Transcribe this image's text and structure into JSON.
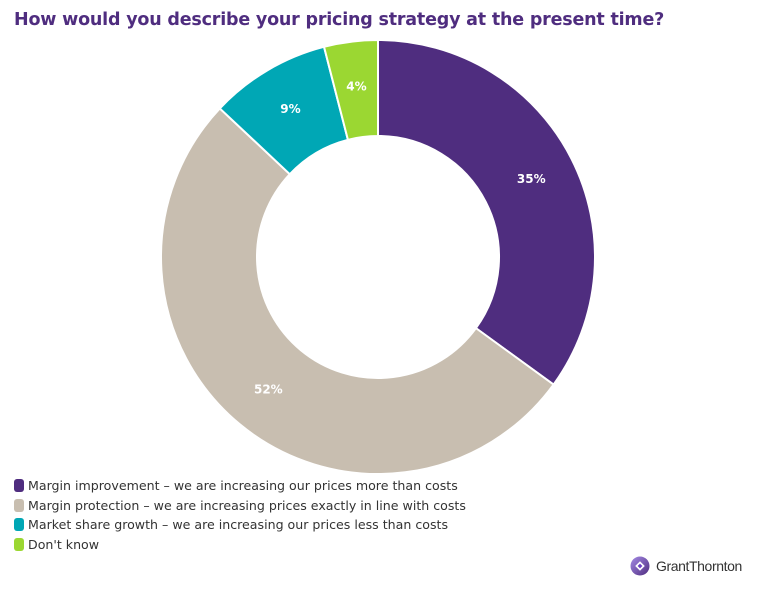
{
  "chart_data": {
    "type": "pie",
    "variant": "donut",
    "title": "How would you describe your pricing strategy at the present time?",
    "start_angle_note": "clockwise from 12 o'clock",
    "slices": [
      {
        "name": "Margin improvement - we are increasing our prices more than costs",
        "value": 35,
        "label": "35%",
        "color": "#4f2d7f"
      },
      {
        "name": "Margin protection - we are increasing prices exactly in line with costs",
        "value": 52,
        "label": "52%",
        "color": "#c8beb0"
      },
      {
        "name": "Market share growth - we are increasing our prices less than costs",
        "value": 9,
        "label": "9%",
        "color": "#00a7b5"
      },
      {
        "name": "Don't know",
        "value": 4,
        "label": "4%",
        "color": "#9bd732"
      }
    ],
    "legend_position": "bottom-left",
    "units": "%"
  },
  "title": "How would you describe your pricing strategy at the present time?",
  "legend": [
    {
      "label": "Margin improvement – we are increasing our prices more than costs",
      "color": "#4f2d7f"
    },
    {
      "label": "Margin protection – we are increasing prices exactly in line with costs",
      "color": "#c8beb0"
    },
    {
      "label": "Market share growth – we are increasing our prices less than costs",
      "color": "#00a7b5"
    },
    {
      "label": "Don't know",
      "color": "#9bd732"
    }
  ],
  "brand": {
    "name": "GrantThornton",
    "icon": "grant-thornton-logo-icon",
    "color": "#6b3fc4"
  }
}
